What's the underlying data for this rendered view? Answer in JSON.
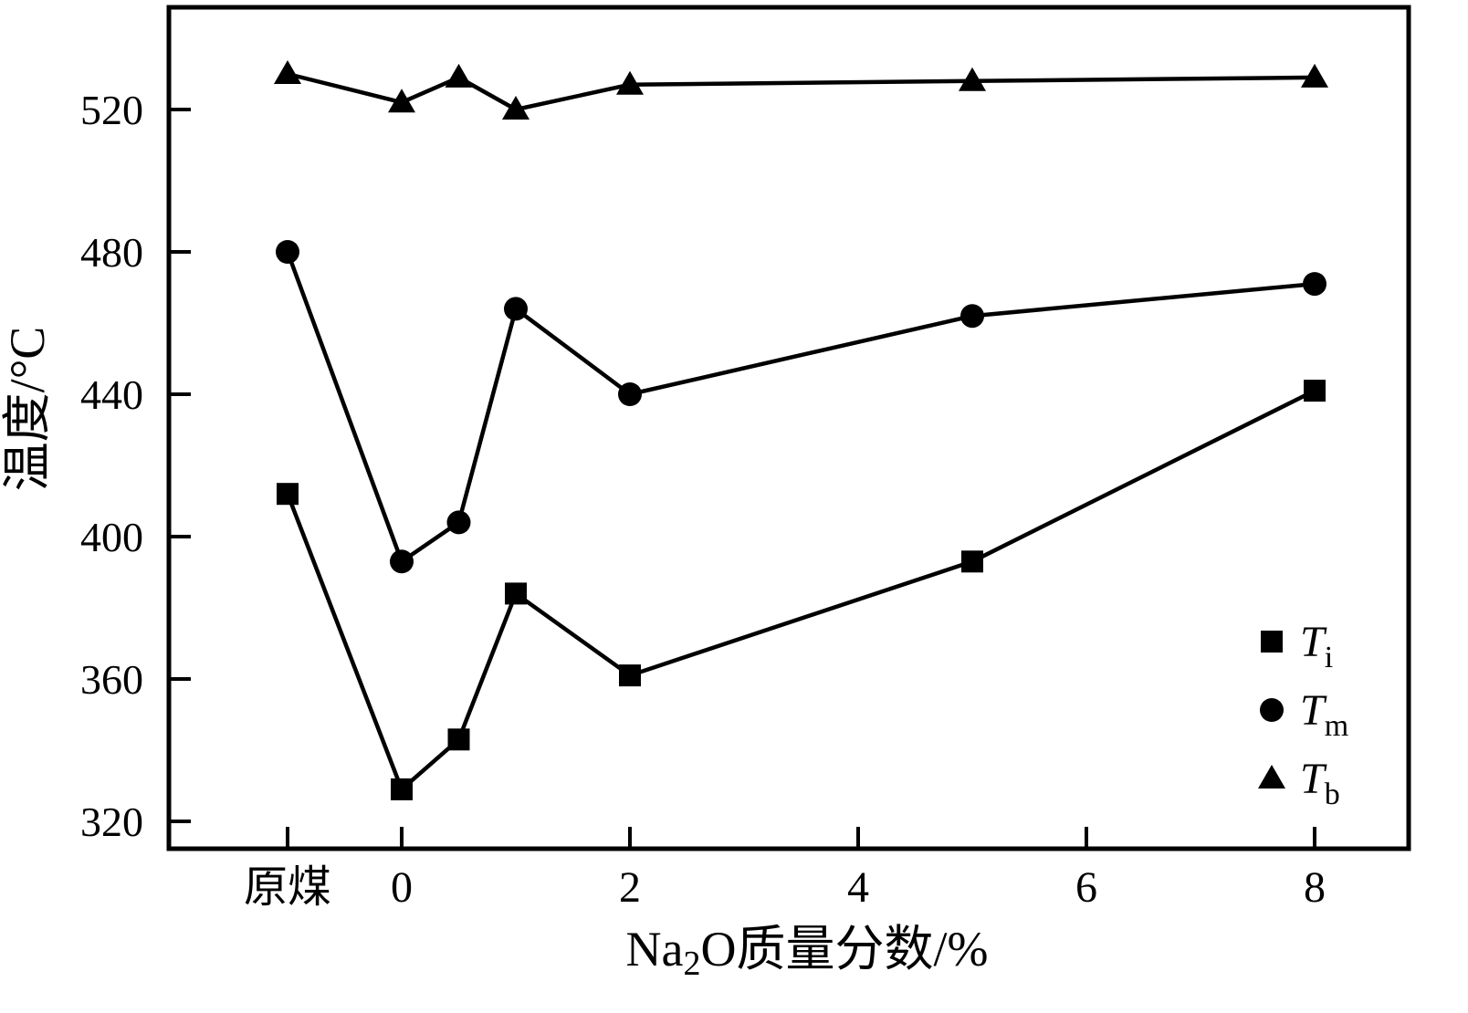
{
  "chart_data": {
    "type": "line",
    "title": "",
    "ylabel": "温度/°C",
    "xlabel_parts": {
      "pre": "Na",
      "sub": "2",
      "post": "O质量分数/%"
    },
    "yticks": [
      320,
      360,
      400,
      440,
      480,
      520
    ],
    "ylim": [
      312,
      549
    ],
    "xticks": [
      {
        "u": -1,
        "label": "原煤"
      },
      {
        "u": 0,
        "label": "0"
      },
      {
        "u": 2,
        "label": "2"
      },
      {
        "u": 4,
        "label": "4"
      },
      {
        "u": 6,
        "label": "6"
      },
      {
        "u": 8,
        "label": "8"
      }
    ],
    "x_points": [
      -1,
      0,
      0.5,
      1,
      2,
      5,
      8
    ],
    "x_point_meaning": "Na2O mass fraction in %, with -1 position standing for raw coal (原煤)",
    "series": [
      {
        "name_main": "T",
        "name_sub": "i",
        "marker": "square",
        "values": [
          412,
          329,
          343,
          384,
          361,
          393,
          441
        ]
      },
      {
        "name_main": "T",
        "name_sub": "m",
        "marker": "circle",
        "values": [
          480,
          393,
          404,
          464,
          440,
          462,
          471
        ]
      },
      {
        "name_main": "T",
        "name_sub": "b",
        "marker": "triangle",
        "values": [
          530,
          522,
          529,
          520,
          527,
          528,
          529
        ]
      }
    ],
    "legend": [
      {
        "marker": "square",
        "main": "T",
        "sub": "i"
      },
      {
        "marker": "circle",
        "main": "T",
        "sub": "m"
      },
      {
        "marker": "triangle",
        "main": "T",
        "sub": "b"
      }
    ],
    "legend_position": "lower right",
    "grid": false,
    "line_color": "#000000"
  }
}
